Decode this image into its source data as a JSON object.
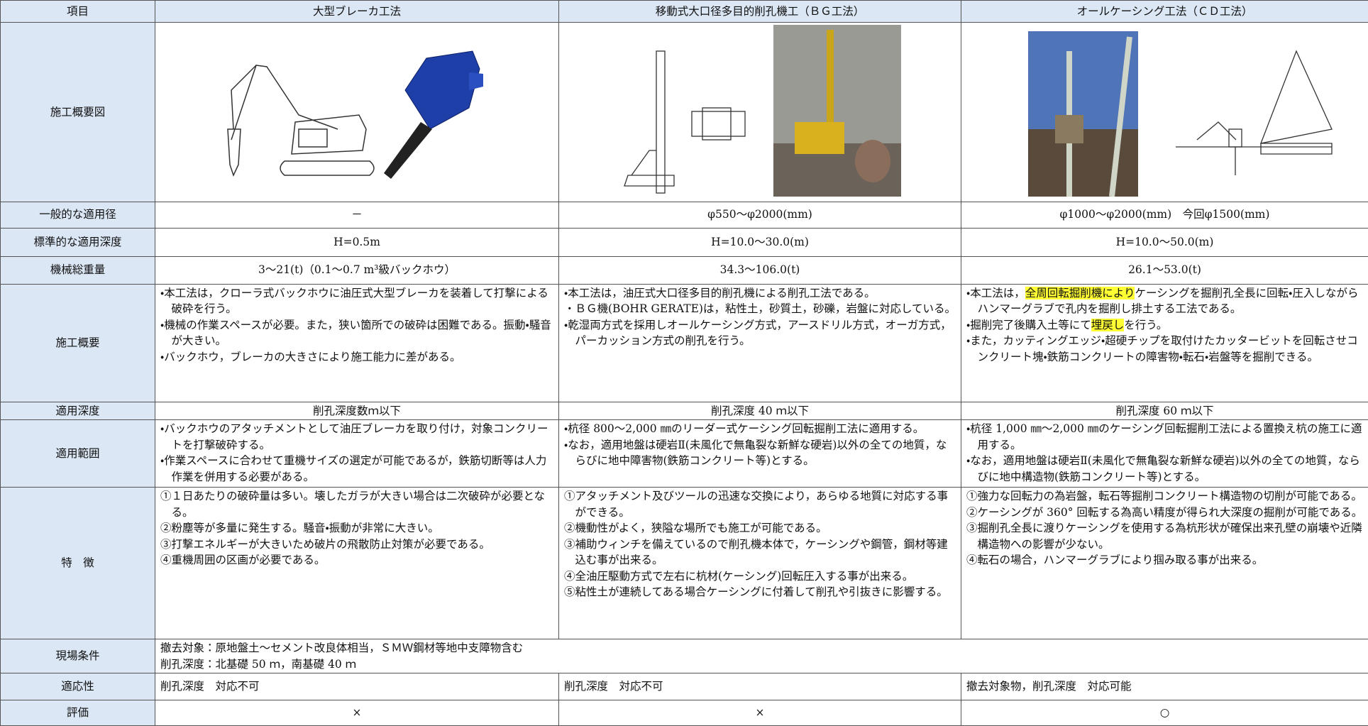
{
  "header": [
    "項目",
    "大型ブレーカ工法",
    "移動式大口径多目的削孔機工（ＢＧ工法）",
    "オールケーシング工法（ＣＤ工法）"
  ],
  "rows": [
    {
      "label": "施工概要図"
    },
    {
      "label": "一般的な適用径",
      "cells": [
        "－",
        "φ550～φ2000(mm)",
        "φ1000～φ2000(mm)　今回φ1500(mm)"
      ]
    },
    {
      "label": "標準的な適用深度",
      "cells": [
        "H=0.5m",
        "H=10.0～30.0(m)",
        "H=10.0～50.0(m)"
      ]
    },
    {
      "label": "機械総重量",
      "cells": [
        "3～21(t)（0.1～0.7 m³級バックホウ）",
        "34.3～106.0(t)",
        "26.1～53.0(t)"
      ]
    },
    {
      "label": "施工概要",
      "cells": [
        [
          "・本工法は，クローラ式バックホウに油圧式大型ブレーカを装着して打撃による破砕を行う。",
          "・機械の作業スペースが必要。また，狭い箇所での破砕は困難である。振動・騒音が大きい。",
          "・バックホウ，ブレーカの大きさにより施工能力に差がある。"
        ],
        [
          "・本工法は，油圧式大口径多目的削孔機による削孔工法である。",
          "・ＢＧ機(BOHR GERATE)は，粘性土，砂質土，砂礫，岩盤に対応している。",
          "・乾湿両方式を採用しオールケーシング方式，アースドリル方式，オーガ方式，パーカッション方式の削孔を行う。"
        ],
        [
          [
            {
              "text": "・本工法は，"
            },
            {
              "text": "全周回転掘削機により",
              "highlight": true
            },
            {
              "text": "ケーシングを掘削孔全長に回転・圧入しながらハンマーグラブで孔内を掘削し排土する工法である。"
            }
          ],
          [
            {
              "text": "・掘削完了後購入土等にて"
            },
            {
              "text": "埋戻し",
              "highlight": true
            },
            {
              "text": "を行う。"
            }
          ],
          "・また，カッティングエッジ・超硬チップを取付けたカッタービットを回転させコンクリート塊・鉄筋コンクリートの障害物・転石・岩盤等を掘削できる。"
        ]
      ]
    },
    {
      "label": "適用深度",
      "cells": [
        "削孔深度数ｍ以下",
        "削孔深度 40 ｍ以下",
        "削孔深度 60 ｍ以下"
      ]
    },
    {
      "label": "適用範囲",
      "cells": [
        [
          "・バックホウのアタッチメントとして油圧ブレーカを取り付け，対象コンクリートを打撃破砕する。",
          "・作業スペースに合わせて重機サイズの選定が可能であるが，鉄筋切断等は人力作業を併用する必要がある。"
        ],
        [
          "・杭径 800～2,000 ㎜のリーダー式ケーシング回転掘削工法に適用する。",
          "・なお，適用地盤は硬岩Ⅱ(未風化で無亀裂な新鮮な硬岩)以外の全ての地質，ならびに地中障害物(鉄筋コンクリート等)とする。"
        ],
        [
          "・杭径 1,000 ㎜～2,000 ㎜のケーシング回転掘削工法による置換え杭の施工に適用する。",
          "・なお，適用地盤は硬岩Ⅱ(未風化で無亀裂な新鮮な硬岩)以外の全ての地質，ならびに地中構造物(鉄筋コンクリート等)とする。"
        ]
      ]
    },
    {
      "label": "特　徴",
      "cells": [
        [
          "①１日あたりの破砕量は多い。壊したガラが大きい場合は二次破砕が必要となる。",
          "②粉塵等が多量に発生する。騒音・振動が非常に大きい。",
          "③打撃エネルギーが大きいため破片の飛散防止対策が必要である。",
          "④重機周囲の区画が必要である。"
        ],
        [
          "①アタッチメント及びツールの迅速な交換により，あらゆる地質に対応する事ができる。",
          "②機動性がよく，狭隘な場所でも施工が可能である。",
          "③補助ウィンチを備えているので削孔機本体で，ケーシングや鋼管，鋼材等建込む事が出来る。",
          "④全油圧駆動方式で左右に杭材(ケーシング)回転圧入する事が出来る。",
          "⑤粘性土が連続してある場合ケーシングに付着して削孔や引抜きに影響する。"
        ],
        [
          "①強力な回転力の為岩盤，転石等掘削コンクリート構造物の切削が可能である。",
          "②ケーシングが 360° 回転する為高い精度が得られ大深度の掘削が可能である。",
          "③掘削孔全長に渡りケーシングを使用する為杭形状が確保出来孔壁の崩壊や近隣構造物への影響が少ない。",
          "④転石の場合，ハンマーグラブにより掴み取る事が出来る。"
        ]
      ]
    },
    {
      "label": "現場条件",
      "cells": [
        [
          "撤去対象：原地盤土～セメント改良体相当，ＳＭＷ鋼材等地中支障物含む",
          "削孔深度：北基礎 50 ｍ，南基礎 40 ｍ"
        ]
      ]
    },
    {
      "label": "適応性",
      "cells": [
        "削孔深度　対応不可",
        "削孔深度　対応不可",
        "撤去対象物，削孔深度　対応可能"
      ]
    },
    {
      "label": "評価",
      "cells": [
        "×",
        "×",
        "○"
      ]
    }
  ]
}
